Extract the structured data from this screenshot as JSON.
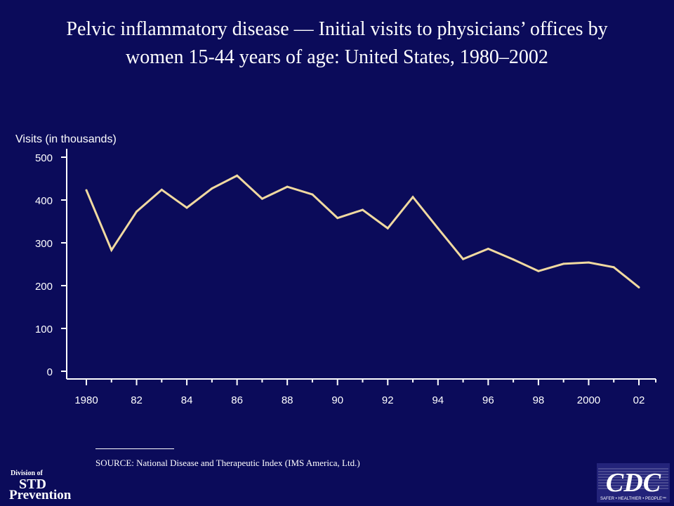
{
  "title": {
    "line1": "Pelvic inflammatory disease — Initial visits to physicians’ offices by",
    "line2": "women 15-44 years of age: United States, 1980–2002"
  },
  "source": "SOURCE: National Disease and Therapeutic Index (IMS America, Ltd.)",
  "logos": {
    "std": {
      "line1": "Division of",
      "line2": "STD",
      "line3": "Prevention"
    },
    "cdc": {
      "text": "CDC",
      "tagline": "SAFER • HEALTHIER • PEOPLE™"
    }
  },
  "colors": {
    "background": "#0b0b5a",
    "line": "#f0d9a0",
    "axis": "#ffffff",
    "text": "#ffffff"
  },
  "chart_data": {
    "type": "line",
    "title": "",
    "ylabel": "Visits (in thousands)",
    "xlabel": "",
    "x": [
      1980,
      1981,
      1982,
      1983,
      1984,
      1985,
      1986,
      1987,
      1988,
      1989,
      1990,
      1991,
      1992,
      1993,
      1994,
      1995,
      1996,
      1997,
      1998,
      1999,
      2000,
      2001,
      2002
    ],
    "series": [
      {
        "values": [
          423,
          283,
          373,
          424,
          382,
          427,
          457,
          403,
          431,
          413,
          358,
          377,
          334,
          407,
          334,
          262,
          286,
          261,
          234,
          251,
          254,
          243,
          196
        ]
      }
    ],
    "xlim": [
      1980,
      2002
    ],
    "ylim": [
      0,
      500
    ],
    "y_ticks": [
      0,
      100,
      200,
      300,
      400,
      500
    ],
    "x_tick_labels": [
      {
        "x": 1980,
        "label": "1980"
      },
      {
        "x": 1982,
        "label": "82"
      },
      {
        "x": 1984,
        "label": "84"
      },
      {
        "x": 1986,
        "label": "86"
      },
      {
        "x": 1988,
        "label": "88"
      },
      {
        "x": 1990,
        "label": "90"
      },
      {
        "x": 1992,
        "label": "92"
      },
      {
        "x": 1994,
        "label": "94"
      },
      {
        "x": 1996,
        "label": "96"
      },
      {
        "x": 1998,
        "label": "98"
      },
      {
        "x": 2000,
        "label": "2000"
      },
      {
        "x": 2002,
        "label": "02"
      }
    ],
    "grid": false,
    "legend": "none"
  }
}
